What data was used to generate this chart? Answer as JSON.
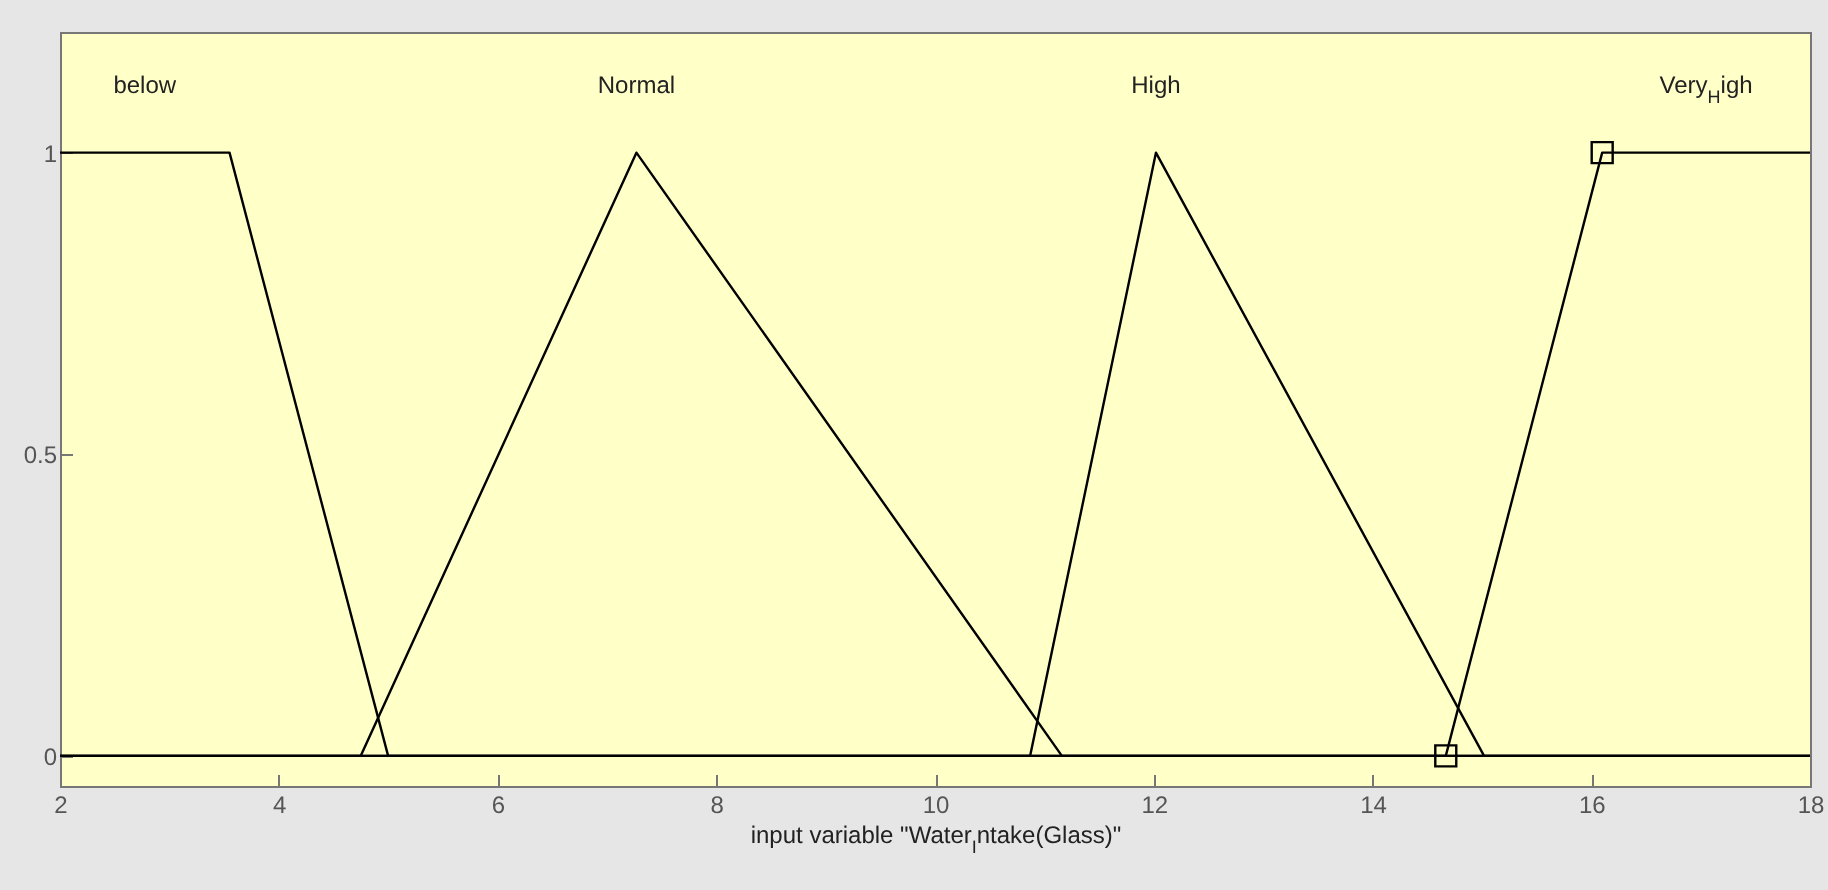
{
  "chart_data": {
    "type": "line",
    "xlabel": "input variable \"Water$_{I}$ntake(Glass)\"",
    "xlim": [
      2,
      18
    ],
    "xticks": [
      2,
      4,
      6,
      8,
      10,
      12,
      14,
      16,
      18
    ],
    "ylim": [
      -0.05,
      1.2
    ],
    "yticks": [
      0,
      0.5,
      1
    ],
    "grid": false,
    "line_style": "solid",
    "series": [
      {
        "name": "below",
        "color": "#000000",
        "x": [
          2,
          3.55,
          5,
          18
        ],
        "values": [
          1,
          1,
          0,
          0
        ]
      },
      {
        "name": "Normal",
        "color": "#000000",
        "x": [
          2,
          4.75,
          7.27,
          11.16,
          18
        ],
        "values": [
          0,
          0,
          1,
          0,
          0
        ]
      },
      {
        "name": "High",
        "color": "#000000",
        "x": [
          2,
          10.87,
          12.02,
          15.02,
          18
        ],
        "values": [
          0,
          0,
          1,
          0,
          0
        ]
      },
      {
        "name": "Very$_{H}$igh",
        "color": "#000000",
        "x": [
          2,
          14.67,
          16.1,
          18
        ],
        "values": [
          0,
          0,
          1,
          1
        ]
      },
      {
        "type": "scatter",
        "marker": "square",
        "color": "#000000",
        "x": [
          14.67,
          16.1
        ],
        "values": [
          0,
          1
        ]
      }
    ]
  }
}
